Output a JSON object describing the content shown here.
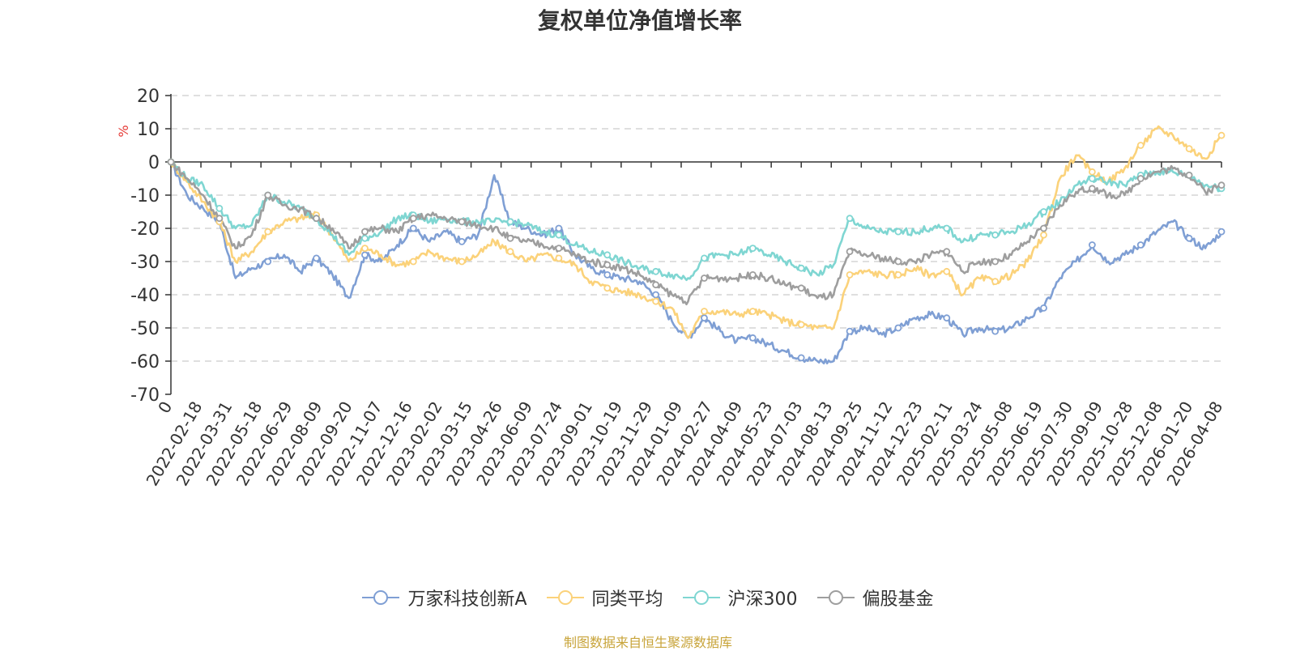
{
  "chart_data": {
    "type": "line",
    "title": "复权单位净值增长率",
    "ylabel": "%",
    "xlabel": "",
    "ylim": [
      -70,
      20
    ],
    "yticks": [
      20,
      10,
      0,
      -10,
      -20,
      -30,
      -40,
      -50,
      -60,
      -70
    ],
    "grid": true,
    "legend_position": "bottom",
    "x_ticks": [
      "0",
      "2022-02-18",
      "2022-03-31",
      "2022-05-18",
      "2022-06-29",
      "2022-08-09",
      "2022-09-20",
      "2022-11-07",
      "2022-12-16",
      "2023-02-02",
      "2023-03-15",
      "2023-04-26",
      "2023-06-09",
      "2023-07-24",
      "2023-09-01",
      "2023-10-19",
      "2023-11-29",
      "2024-01-09",
      "2024-02-27",
      "2024-04-09",
      "2024-05-23",
      "2024-07-03",
      "2024-08-13",
      "2024-09-25",
      "2024-11-12",
      "2024-12-23",
      "2025-02-11",
      "2025-03-24",
      "2025-05-08",
      "2025-06-19",
      "2025-07-30",
      "2025-09-09",
      "2025-10-28",
      "2025-12-08",
      "2026-01-20",
      "2026-04-08"
    ],
    "series": [
      {
        "name": "万家科技创新A",
        "color": "#7f9fd4",
        "values": [
          0,
          -10,
          -14,
          -18,
          -35,
          -32,
          -30,
          -28,
          -33,
          -29,
          -34,
          -41,
          -28,
          -30,
          -25,
          -20,
          -24,
          -21,
          -24,
          -22,
          -4,
          -18,
          -20,
          -22,
          -20,
          -28,
          -32,
          -34,
          -35,
          -36,
          -40,
          -48,
          -53,
          -47,
          -51,
          -54,
          -53,
          -55,
          -57,
          -59,
          -60,
          -60,
          -51,
          -50,
          -52,
          -50,
          -47,
          -46,
          -47,
          -52,
          -50,
          -51,
          -50,
          -47,
          -44,
          -35,
          -30,
          -25,
          -30,
          -28,
          -25,
          -21,
          -18,
          -23,
          -26,
          -21
        ]
      },
      {
        "name": "同类平均",
        "color": "#fbd27a",
        "values": [
          0,
          -6,
          -12,
          -18,
          -30,
          -27,
          -21,
          -18,
          -17,
          -16,
          -22,
          -30,
          -26,
          -28,
          -31,
          -30,
          -27,
          -29,
          -30,
          -28,
          -24,
          -27,
          -30,
          -28,
          -29,
          -31,
          -36,
          -38,
          -39,
          -40,
          -42,
          -44,
          -53,
          -45,
          -45,
          -46,
          -45,
          -46,
          -48,
          -49,
          -50,
          -50,
          -34,
          -33,
          -34,
          -34,
          -32,
          -34,
          -33,
          -40,
          -35,
          -36,
          -34,
          -30,
          -22,
          -5,
          2,
          -3,
          -6,
          -2,
          5,
          10,
          8,
          4,
          1,
          8
        ]
      },
      {
        "name": "沪深300",
        "color": "#7fd6d2",
        "values": [
          0,
          -5,
          -7,
          -14,
          -20,
          -19,
          -10,
          -12,
          -14,
          -17,
          -22,
          -28,
          -23,
          -21,
          -17,
          -16,
          -18,
          -17,
          -18,
          -18,
          -18,
          -18,
          -19,
          -21,
          -22,
          -25,
          -27,
          -28,
          -30,
          -32,
          -33,
          -34,
          -35,
          -29,
          -28,
          -28,
          -26,
          -28,
          -30,
          -32,
          -34,
          -31,
          -17,
          -20,
          -21,
          -21,
          -21,
          -20,
          -20,
          -24,
          -22,
          -22,
          -21,
          -19,
          -15,
          -12,
          -7,
          -5,
          -6,
          -7,
          -4,
          -3,
          -3,
          -4,
          -7,
          -8
        ]
      },
      {
        "name": "偏股基金",
        "color": "#9e9e9e",
        "values": [
          0,
          -5,
          -10,
          -17,
          -26,
          -22,
          -10,
          -13,
          -14,
          -17,
          -20,
          -26,
          -21,
          -20,
          -21,
          -17,
          -16,
          -17,
          -18,
          -19,
          -20,
          -23,
          -24,
          -25,
          -26,
          -28,
          -30,
          -31,
          -32,
          -34,
          -37,
          -40,
          -42,
          -35,
          -35,
          -35,
          -34,
          -35,
          -37,
          -38,
          -41,
          -40,
          -27,
          -28,
          -29,
          -30,
          -30,
          -28,
          -27,
          -33,
          -30,
          -30,
          -28,
          -24,
          -20,
          -13,
          -9,
          -8,
          -10,
          -10,
          -5,
          -3,
          -2,
          -4,
          -9,
          -7
        ]
      }
    ]
  },
  "legend_items": [
    "万家科技创新A",
    "同类平均",
    "沪深300",
    "偏股基金"
  ],
  "footer": "制图数据来自恒生聚源数据库"
}
